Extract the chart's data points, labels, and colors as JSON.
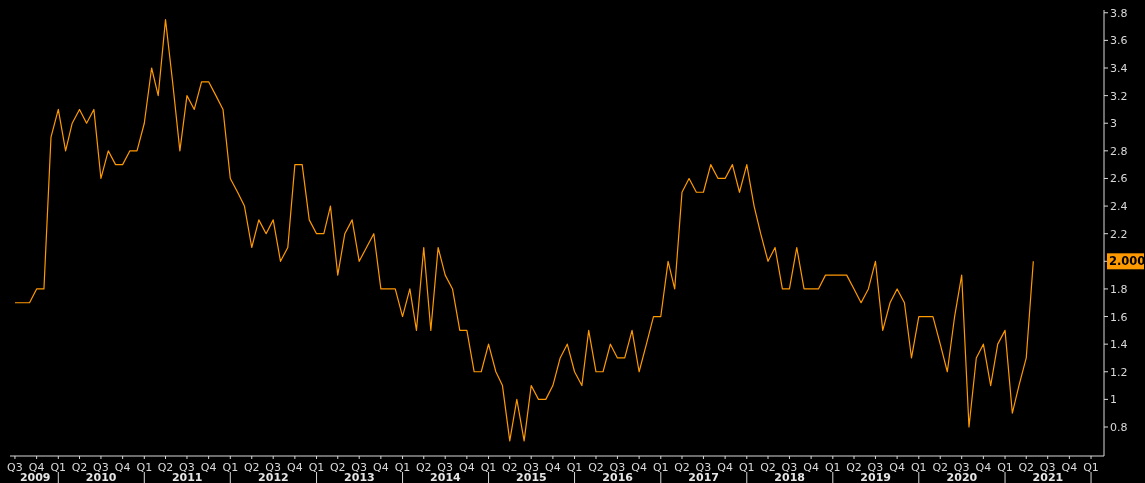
{
  "chart_data": {
    "type": "line",
    "x": [
      "2009-07",
      "2009-08",
      "2009-09",
      "2009-10",
      "2009-11",
      "2009-12",
      "2010-01",
      "2010-02",
      "2010-03",
      "2010-04",
      "2010-05",
      "2010-06",
      "2010-07",
      "2010-08",
      "2010-09",
      "2010-10",
      "2010-11",
      "2010-12",
      "2011-01",
      "2011-02",
      "2011-03",
      "2011-04",
      "2011-05",
      "2011-06",
      "2011-07",
      "2011-08",
      "2011-09",
      "2011-10",
      "2011-11",
      "2011-12",
      "2012-01",
      "2012-02",
      "2012-03",
      "2012-04",
      "2012-05",
      "2012-06",
      "2012-07",
      "2012-08",
      "2012-09",
      "2012-10",
      "2012-11",
      "2012-12",
      "2013-01",
      "2013-02",
      "2013-03",
      "2013-04",
      "2013-05",
      "2013-06",
      "2013-07",
      "2013-08",
      "2013-09",
      "2013-10",
      "2013-11",
      "2013-12",
      "2014-01",
      "2014-02",
      "2014-03",
      "2014-04",
      "2014-05",
      "2014-06",
      "2014-07",
      "2014-08",
      "2014-09",
      "2014-10",
      "2014-11",
      "2014-12",
      "2015-01",
      "2015-02",
      "2015-03",
      "2015-04",
      "2015-05",
      "2015-06",
      "2015-07",
      "2015-08",
      "2015-09",
      "2015-10",
      "2015-11",
      "2015-12",
      "2016-01",
      "2016-02",
      "2016-03",
      "2016-04",
      "2016-05",
      "2016-06",
      "2016-07",
      "2016-08",
      "2016-09",
      "2016-10",
      "2016-11",
      "2016-12",
      "2017-01",
      "2017-02",
      "2017-03",
      "2017-04",
      "2017-05",
      "2017-06",
      "2017-07",
      "2017-08",
      "2017-09",
      "2017-10",
      "2017-11",
      "2017-12",
      "2018-01",
      "2018-02",
      "2018-03",
      "2018-04",
      "2018-05",
      "2018-06",
      "2018-07",
      "2018-08",
      "2018-09",
      "2018-10",
      "2018-11",
      "2018-12",
      "2019-01",
      "2019-02",
      "2019-03",
      "2019-04",
      "2019-05",
      "2019-06",
      "2019-07",
      "2019-08",
      "2019-09",
      "2019-10",
      "2019-11",
      "2019-12",
      "2020-01",
      "2020-02",
      "2020-03",
      "2020-04",
      "2020-05",
      "2020-06",
      "2020-07",
      "2020-08",
      "2020-09",
      "2020-10",
      "2020-11",
      "2020-12",
      "2021-01",
      "2021-02",
      "2021-03",
      "2021-04",
      "2021-05"
    ],
    "series": [
      {
        "color": "#ff9900",
        "values": [
          1.7,
          1.7,
          1.7,
          1.8,
          1.8,
          2.9,
          3.1,
          2.8,
          3.0,
          3.1,
          3.0,
          3.1,
          2.6,
          2.8,
          2.7,
          2.7,
          2.8,
          2.8,
          3.0,
          3.4,
          3.2,
          3.75,
          3.3,
          2.8,
          3.2,
          3.1,
          3.3,
          3.3,
          3.2,
          3.1,
          2.6,
          2.5,
          2.4,
          2.1,
          2.3,
          2.2,
          2.3,
          2.0,
          2.1,
          2.7,
          2.7,
          2.3,
          2.2,
          2.2,
          2.4,
          1.9,
          2.2,
          2.3,
          2.0,
          2.1,
          2.2,
          1.8,
          1.8,
          1.8,
          1.6,
          1.8,
          1.5,
          2.1,
          1.5,
          2.1,
          1.9,
          1.8,
          1.5,
          1.5,
          1.2,
          1.2,
          1.4,
          1.2,
          1.1,
          0.7,
          1.0,
          0.7,
          1.1,
          1.0,
          1.0,
          1.1,
          1.3,
          1.4,
          1.2,
          1.1,
          1.5,
          1.2,
          1.2,
          1.4,
          1.3,
          1.3,
          1.5,
          1.2,
          1.4,
          1.6,
          1.6,
          2.0,
          1.8,
          2.5,
          2.6,
          2.5,
          2.5,
          2.7,
          2.6,
          2.6,
          2.7,
          2.5,
          2.7,
          2.4,
          2.2,
          2.0,
          2.1,
          1.8,
          1.8,
          2.1,
          1.8,
          1.8,
          1.8,
          1.9,
          1.9,
          1.9,
          1.9,
          1.8,
          1.7,
          1.8,
          2.0,
          1.5,
          1.7,
          1.8,
          1.7,
          1.3,
          1.6,
          1.6,
          1.6,
          1.4,
          1.2,
          1.6,
          1.9,
          0.8,
          1.3,
          1.4,
          1.1,
          1.4,
          1.5,
          0.9,
          1.1,
          1.3,
          2.0
        ]
      }
    ],
    "xlim": [
      "2009-06-10",
      "2022-02-25"
    ],
    "xticks": [
      {
        "value": "2009-07-01",
        "label": "Q3"
      },
      {
        "value": "2009-10-01",
        "label": "Q4"
      },
      {
        "value": "2010-01-01",
        "label": "Q1"
      },
      {
        "value": "2010-04-01",
        "label": "Q2"
      },
      {
        "value": "2010-07-01",
        "label": "Q3"
      },
      {
        "value": "2010-10-01",
        "label": "Q4"
      },
      {
        "value": "2011-01-01",
        "label": "Q1"
      },
      {
        "value": "2011-04-01",
        "label": "Q2"
      },
      {
        "value": "2011-07-01",
        "label": "Q3"
      },
      {
        "value": "2011-10-01",
        "label": "Q4"
      },
      {
        "value": "2012-01-01",
        "label": "Q1"
      },
      {
        "value": "2012-04-01",
        "label": "Q2"
      },
      {
        "value": "2012-07-01",
        "label": "Q3"
      },
      {
        "value": "2012-10-01",
        "label": "Q4"
      },
      {
        "value": "2013-01-01",
        "label": "Q1"
      },
      {
        "value": "2013-04-01",
        "label": "Q2"
      },
      {
        "value": "2013-07-01",
        "label": "Q3"
      },
      {
        "value": "2013-10-01",
        "label": "Q4"
      },
      {
        "value": "2014-01-01",
        "label": "Q1"
      },
      {
        "value": "2014-04-01",
        "label": "Q2"
      },
      {
        "value": "2014-07-01",
        "label": "Q3"
      },
      {
        "value": "2014-10-01",
        "label": "Q4"
      },
      {
        "value": "2015-01-01",
        "label": "Q1"
      },
      {
        "value": "2015-04-01",
        "label": "Q2"
      },
      {
        "value": "2015-07-01",
        "label": "Q3"
      },
      {
        "value": "2015-10-01",
        "label": "Q4"
      },
      {
        "value": "2016-01-01",
        "label": "Q1"
      },
      {
        "value": "2016-04-01",
        "label": "Q2"
      },
      {
        "value": "2016-07-01",
        "label": "Q3"
      },
      {
        "value": "2016-10-01",
        "label": "Q4"
      },
      {
        "value": "2017-01-01",
        "label": "Q1"
      },
      {
        "value": "2017-04-01",
        "label": "Q2"
      },
      {
        "value": "2017-07-01",
        "label": "Q3"
      },
      {
        "value": "2017-10-01",
        "label": "Q4"
      },
      {
        "value": "2018-01-01",
        "label": "Q1"
      },
      {
        "value": "2018-04-01",
        "label": "Q2"
      },
      {
        "value": "2018-07-01",
        "label": "Q3"
      },
      {
        "value": "2018-10-01",
        "label": "Q4"
      },
      {
        "value": "2019-01-01",
        "label": "Q1"
      },
      {
        "value": "2019-04-01",
        "label": "Q2"
      },
      {
        "value": "2019-07-01",
        "label": "Q3"
      },
      {
        "value": "2019-10-01",
        "label": "Q4"
      },
      {
        "value": "2020-01-01",
        "label": "Q1"
      },
      {
        "value": "2020-04-01",
        "label": "Q2"
      },
      {
        "value": "2020-07-01",
        "label": "Q3"
      },
      {
        "value": "2020-10-01",
        "label": "Q4"
      },
      {
        "value": "2021-01-01",
        "label": "Q1"
      },
      {
        "value": "2021-04-01",
        "label": "Q2"
      },
      {
        "value": "2021-07-01",
        "label": "Q3"
      },
      {
        "value": "2021-10-01",
        "label": "Q4"
      },
      {
        "value": "2022-01-01",
        "label": "Q1"
      }
    ],
    "x2lim": [
      "2009-06-10",
      "2022-02-25"
    ],
    "x2ticks": [
      {
        "value": "2009-09-25",
        "label": "2009"
      },
      {
        "value": "2010-07-02",
        "label": "2010"
      },
      {
        "value": "2011-07-02",
        "label": "2011"
      },
      {
        "value": "2012-07-02",
        "label": "2012"
      },
      {
        "value": "2013-07-02",
        "label": "2013"
      },
      {
        "value": "2014-07-02",
        "label": "2014"
      },
      {
        "value": "2015-07-02",
        "label": "2015"
      },
      {
        "value": "2016-07-02",
        "label": "2016"
      },
      {
        "value": "2017-07-02",
        "label": "2017"
      },
      {
        "value": "2018-07-02",
        "label": "2018"
      },
      {
        "value": "2019-07-02",
        "label": "2019"
      },
      {
        "value": "2020-07-02",
        "label": "2020"
      },
      {
        "value": "2021-07-02",
        "label": "2021"
      }
    ],
    "ylim": [
      0.59,
      3.82
    ],
    "yticks": [
      0.8,
      1,
      1.2,
      1.4,
      1.6,
      1.8,
      {
        "value": 2,
        "label": "2.000"
      },
      2.2,
      2.4,
      2.6,
      2.8,
      3,
      3.2,
      3.4,
      3.6,
      3.8
    ],
    "grid": false
  }
}
